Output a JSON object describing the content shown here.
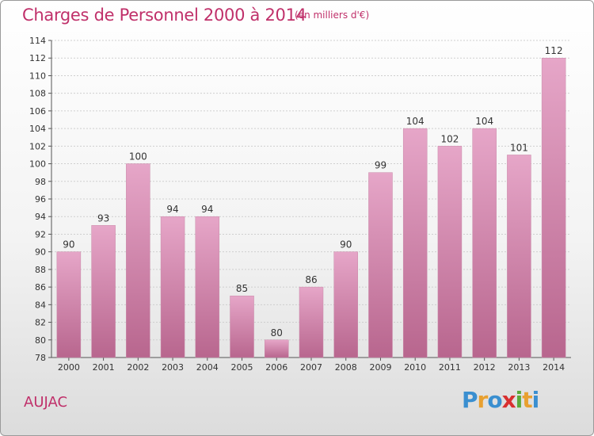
{
  "header": {
    "title": "Charges de Personnel 2000 à 2014",
    "subtitle": "(en milliers d'€)"
  },
  "footer": {
    "commune": "AUJAC",
    "logo_letters": [
      "P",
      "r",
      "o",
      "x",
      "i",
      "t",
      "i"
    ],
    "logo_colors": [
      "#3a8fd0",
      "#e8a030",
      "#3a8fd0",
      "#d83030",
      "#5aaa3a",
      "#e8a030",
      "#3a8fd0"
    ]
  },
  "colors": {
    "bar_top": "#e6a6c8",
    "bar_bottom": "#b8668e",
    "grid": "#cfcfcf",
    "title": "#c0306a"
  },
  "chart_data": {
    "type": "bar",
    "categories": [
      "2000",
      "2001",
      "2002",
      "2003",
      "2004",
      "2005",
      "2006",
      "2007",
      "2008",
      "2009",
      "2010",
      "2011",
      "2012",
      "2013",
      "2014"
    ],
    "values": [
      90,
      93,
      100,
      94,
      94,
      85,
      80,
      86,
      90,
      99,
      104,
      102,
      104,
      101,
      112
    ],
    "ylim": [
      78,
      114
    ],
    "yticks": [
      78,
      80,
      82,
      84,
      86,
      88,
      90,
      92,
      94,
      96,
      98,
      100,
      102,
      104,
      106,
      108,
      110,
      112,
      114
    ],
    "grid": true
  }
}
